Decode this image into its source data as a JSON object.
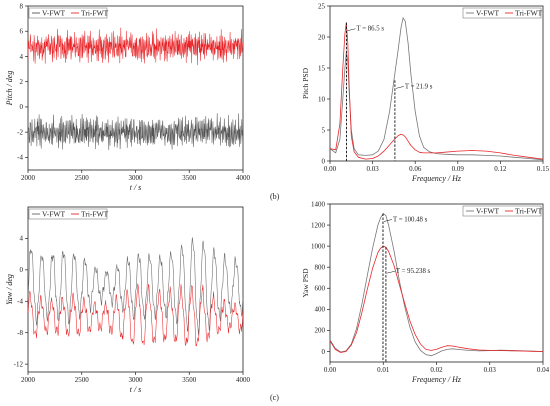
{
  "chart_data": [
    {
      "id": "pitch-time",
      "type": "line",
      "xlabel": "t / s",
      "ylabel": "Pitch / deg",
      "xlim": [
        2000,
        4000
      ],
      "ylim": [
        -5,
        8
      ],
      "xticks": [
        "2000",
        "2500",
        "3000",
        "3500",
        "4000"
      ],
      "yticks": [
        "-4",
        "-2",
        "0",
        "2",
        "4",
        "6",
        "8"
      ],
      "legend": "top-left",
      "series": [
        {
          "name": "V-FWT",
          "color": "#555555",
          "mean": -2.0,
          "amp": 1.0
        },
        {
          "name": "Tri-FWT",
          "color": "#e8262a",
          "mean": 4.8,
          "amp": 1.0
        }
      ]
    },
    {
      "id": "pitch-psd",
      "type": "line",
      "xlabel": "Frequency / Hz",
      "ylabel": "Pitch PSD",
      "xlim": [
        0,
        0.15
      ],
      "ylim": [
        0,
        25
      ],
      "xticks": [
        "0.00",
        "0.03",
        "0.06",
        "0.09",
        "0.12",
        "0.15"
      ],
      "yticks": [
        "0",
        "5",
        "10",
        "15",
        "20",
        "25"
      ],
      "legend": "top-right",
      "series": [
        {
          "name": "V-FWT",
          "color": "#777777",
          "x": [
            0,
            0.004,
            0.007,
            0.009,
            0.0105,
            0.0115,
            0.0125,
            0.0135,
            0.015,
            0.017,
            0.02,
            0.025,
            0.03,
            0.034,
            0.038,
            0.042,
            0.045,
            0.048,
            0.05,
            0.0515,
            0.053,
            0.055,
            0.057,
            0.06,
            0.063,
            0.066,
            0.07,
            0.075,
            0.08,
            0.09,
            0.1,
            0.11,
            0.12,
            0.13,
            0.14,
            0.15
          ],
          "y": [
            2.0,
            1.3,
            3.5,
            10,
            15,
            17.5,
            16,
            11,
            5,
            2.0,
            1.0,
            0.9,
            1.0,
            1.6,
            3.5,
            8,
            13,
            18,
            21.5,
            23.1,
            22.5,
            19,
            14,
            8,
            4,
            2.2,
            1.5,
            1.2,
            1.1,
            1.0,
            1.0,
            0.9,
            0.8,
            0.6,
            0.4,
            0.2
          ]
        },
        {
          "name": "Tri-FWT",
          "color": "#e8262a",
          "x": [
            0,
            0.004,
            0.007,
            0.009,
            0.0105,
            0.0115,
            0.0125,
            0.0135,
            0.015,
            0.017,
            0.02,
            0.025,
            0.03,
            0.034,
            0.038,
            0.042,
            0.045,
            0.048,
            0.05,
            0.0515,
            0.053,
            0.055,
            0.057,
            0.06,
            0.063,
            0.066,
            0.07,
            0.075,
            0.08,
            0.09,
            0.1,
            0.11,
            0.12,
            0.13,
            0.14,
            0.15
          ],
          "y": [
            2.0,
            1.8,
            6,
            15,
            20.5,
            22.3,
            19,
            12,
            4,
            1.5,
            0.6,
            0.3,
            0.4,
            0.8,
            1.6,
            2.6,
            3.4,
            4.1,
            4.3,
            4.2,
            3.9,
            3.2,
            2.5,
            1.8,
            1.4,
            1.3,
            1.3,
            1.3,
            1.4,
            1.6,
            1.7,
            1.6,
            1.3,
            0.9,
            0.6,
            0.3
          ]
        }
      ],
      "annotations": [
        {
          "label": "T = 86.5 s",
          "x": 0.0116
        },
        {
          "label": "T = 21.9 s",
          "x": 0.0457
        }
      ]
    },
    {
      "id": "yaw-time",
      "type": "line",
      "xlabel": "t / s",
      "ylabel": "Yaw / deg",
      "xlim": [
        2000,
        4000
      ],
      "ylim": [
        -13,
        8
      ],
      "xticks": [
        "2000",
        "2500",
        "3000",
        "3500",
        "4000"
      ],
      "yticks": [
        "-12",
        "-8",
        "-4",
        "0",
        "4"
      ],
      "legend": "top-left",
      "series": [
        {
          "name": "V-FWT",
          "color": "#666666",
          "mean": -2.0,
          "amp": 5.0
        },
        {
          "name": "Tri-FWT",
          "color": "#e8262a",
          "mean": -6.0,
          "amp": 3.5
        }
      ]
    },
    {
      "id": "yaw-psd",
      "type": "line",
      "xlabel": "Frequency / Hz",
      "ylabel": "Yaw PSD",
      "xlim": [
        0,
        0.04
      ],
      "ylim": [
        -100,
        1400
      ],
      "xticks": [
        "0.00",
        "0.01",
        "0.02",
        "0.03",
        "0.04"
      ],
      "yticks": [
        "0",
        "200",
        "400",
        "600",
        "800",
        "1000",
        "1200",
        "1400"
      ],
      "legend": "top-right",
      "series": [
        {
          "name": "V-FWT",
          "color": "#777777",
          "x": [
            0,
            0.001,
            0.002,
            0.003,
            0.004,
            0.005,
            0.006,
            0.007,
            0.008,
            0.009,
            0.0095,
            0.01,
            0.0105,
            0.011,
            0.012,
            0.013,
            0.014,
            0.015,
            0.016,
            0.017,
            0.018,
            0.019,
            0.02,
            0.021,
            0.022,
            0.023,
            0.024,
            0.026,
            0.028,
            0.03,
            0.032,
            0.034,
            0.036,
            0.038,
            0.04
          ],
          "y": [
            110,
            30,
            -5,
            5,
            70,
            220,
            450,
            720,
            980,
            1200,
            1270,
            1310,
            1290,
            1200,
            960,
            680,
            430,
            230,
            90,
            10,
            -30,
            -40,
            -20,
            5,
            20,
            25,
            20,
            10,
            5,
            8,
            12,
            10,
            6,
            3,
            0
          ]
        },
        {
          "name": "Tri-FWT",
          "color": "#e8262a",
          "x": [
            0,
            0.001,
            0.002,
            0.003,
            0.004,
            0.005,
            0.006,
            0.007,
            0.008,
            0.009,
            0.0095,
            0.01,
            0.0105,
            0.011,
            0.012,
            0.013,
            0.014,
            0.015,
            0.016,
            0.017,
            0.018,
            0.019,
            0.02,
            0.021,
            0.022,
            0.023,
            0.024,
            0.026,
            0.028,
            0.03,
            0.032,
            0.034,
            0.036,
            0.038,
            0.04
          ],
          "y": [
            100,
            20,
            -10,
            0,
            60,
            180,
            370,
            590,
            790,
            940,
            980,
            1000,
            990,
            950,
            820,
            640,
            460,
            290,
            160,
            70,
            20,
            10,
            20,
            40,
            55,
            52,
            42,
            25,
            14,
            10,
            8,
            6,
            4,
            2,
            0
          ]
        }
      ],
      "annotations": [
        {
          "label": "T = 100.48 s",
          "x": 0.00995
        },
        {
          "label": "T = 95.238 s",
          "x": 0.0105
        }
      ]
    }
  ],
  "panel_labels": [
    "(b)",
    "(c)"
  ]
}
